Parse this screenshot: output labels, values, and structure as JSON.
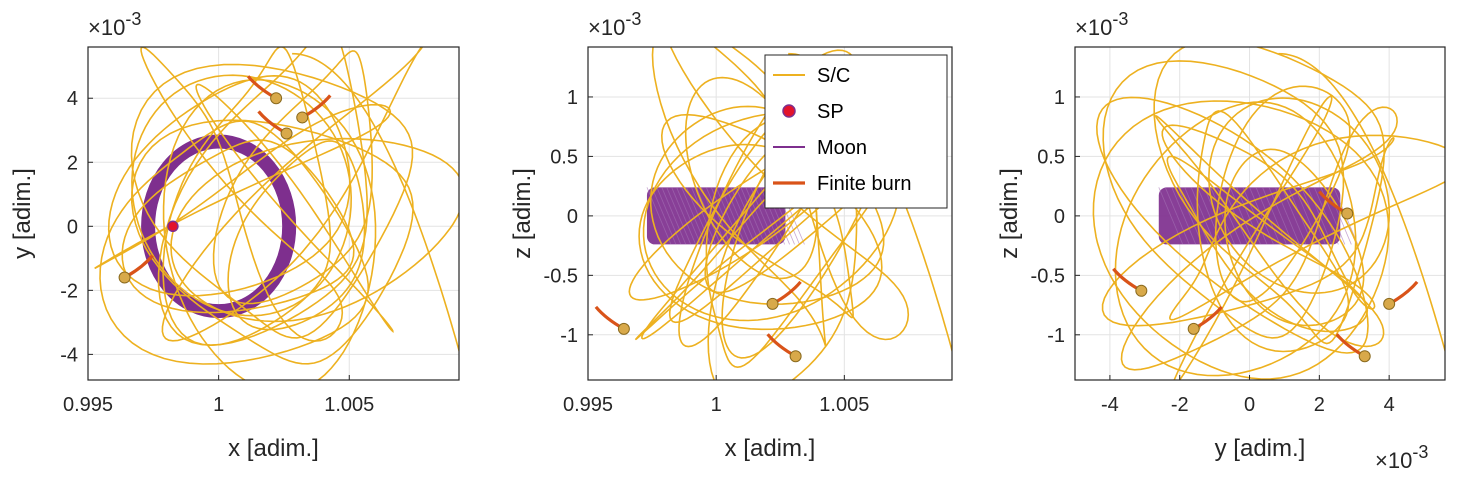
{
  "colors": {
    "spacecraft": "#EDB120",
    "moon": "#7E2F8E",
    "burn": "#D95319",
    "sp_fill": "#E3132B",
    "sp_edge": "#7E2F8E",
    "node_fill": "#D8A94A",
    "node_edge": "#8A6A1E",
    "grid": "#e3e3e3",
    "axis": "#262626"
  },
  "legend": {
    "placement": "inside panel 2, top-right",
    "items": [
      {
        "key": "sc",
        "label": "S/C",
        "kind": "line"
      },
      {
        "key": "sp",
        "label": "SP",
        "kind": "marker"
      },
      {
        "key": "moon",
        "label": "Moon",
        "kind": "line"
      },
      {
        "key": "burn",
        "label": "Finite burn",
        "kind": "line"
      }
    ]
  },
  "chart_data": [
    {
      "type": "line",
      "xlabel": "x [adim.]",
      "ylabel": "y [adim.]",
      "y_exponent": "×10",
      "y_exponent_power": "-3",
      "xlim": [
        0.995,
        1.0092
      ],
      "ylim": [
        -4.8,
        5.6
      ],
      "xticks": [
        0.995,
        1,
        1.005
      ],
      "xticklabels": [
        "0.995",
        "1",
        "1.005"
      ],
      "yticks": [
        -4,
        -2,
        0,
        2,
        4
      ],
      "yticklabels": [
        "-4",
        "-2",
        "0",
        "2",
        "4"
      ],
      "grid": true,
      "moon_orbit": {
        "center": [
          1.0,
          0.0
        ],
        "rx": 0.0027,
        "ry": 2.65,
        "thickness": 0.5
      },
      "sp_point": [
        0.99825,
        0.0
      ],
      "nodes": [
        [
          1.0022,
          4.0
        ],
        [
          1.0032,
          3.4
        ],
        [
          1.0026,
          2.9
        ],
        [
          0.9964,
          -1.6
        ]
      ]
    },
    {
      "type": "line",
      "xlabel": "x [adim.]",
      "ylabel": "z [adim.]",
      "y_exponent": "×10",
      "y_exponent_power": "-3",
      "xlim": [
        0.995,
        1.0092
      ],
      "ylim": [
        -1.38,
        1.42
      ],
      "xticks": [
        0.995,
        1,
        1.005
      ],
      "xticklabels": [
        "0.995",
        "1",
        "1.005"
      ],
      "yticks": [
        -1,
        -0.5,
        0,
        0.5,
        1
      ],
      "yticklabels": [
        "-1",
        "-0.5",
        "0",
        "0.5",
        "1"
      ],
      "grid": true,
      "moon_band": {
        "x_range": [
          0.9973,
          1.0027
        ],
        "z_range": [
          -0.24,
          0.24
        ]
      },
      "nodes": [
        [
          0.9964,
          -0.95
        ],
        [
          1.0022,
          -0.74
        ],
        [
          1.0031,
          -1.18
        ]
      ]
    },
    {
      "type": "line",
      "xlabel": "y [adim.]",
      "ylabel": "z [adim.]",
      "y_exponent": "×10",
      "y_exponent_power": "-3",
      "x_exponent": "×10",
      "x_exponent_power": "-3",
      "xlim": [
        -5.0,
        5.6
      ],
      "ylim": [
        -1.38,
        1.42
      ],
      "xticks": [
        -4,
        -2,
        0,
        2,
        4
      ],
      "xticklabels": [
        "-4",
        "-2",
        "0",
        "2",
        "4"
      ],
      "yticks": [
        -1,
        -0.5,
        0,
        0.5,
        1
      ],
      "yticklabels": [
        "-1",
        "-0.5",
        "0",
        "0.5",
        "1"
      ],
      "grid": true,
      "moon_band": {
        "x_range": [
          -2.6,
          2.6
        ],
        "z_range": [
          -0.24,
          0.24
        ]
      },
      "nodes": [
        [
          -3.1,
          -0.63
        ],
        [
          -1.6,
          -0.95
        ],
        [
          2.8,
          0.02
        ],
        [
          4.0,
          -0.74
        ],
        [
          3.3,
          -1.18
        ]
      ]
    }
  ]
}
